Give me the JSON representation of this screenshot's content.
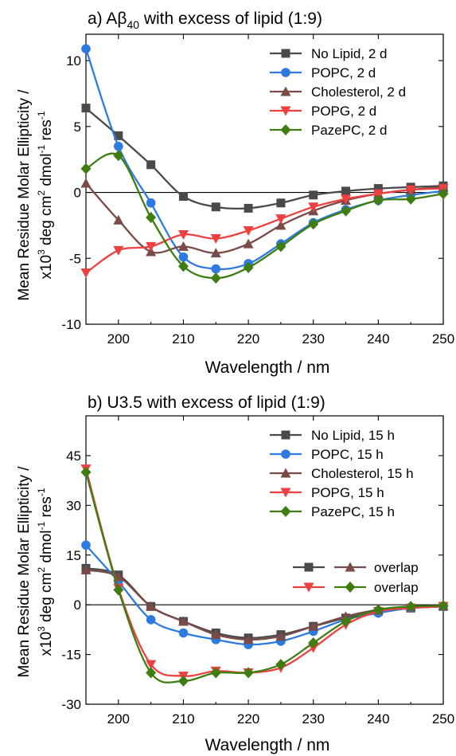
{
  "chart_data": [
    {
      "type": "line",
      "title_main": "a) Aβ",
      "title_sub": "40",
      "title_rest": " with excess of lipid (1:9)",
      "xlabel": "Wavelength / nm",
      "ylabel_line1": "Mean Residue Molar Ellipticity /",
      "ylabel_line2_a": "x10",
      "ylabel_line2_b": "3",
      "ylabel_line2_c": " deg cm",
      "ylabel_line2_d": "2",
      "ylabel_line2_e": " dmol",
      "ylabel_line2_f": "-1",
      "ylabel_line2_g": " res",
      "ylabel_line2_h": "-1",
      "xlim": [
        195,
        250
      ],
      "ylim": [
        -10,
        12
      ],
      "xticks": [
        200,
        210,
        220,
        230,
        240,
        250
      ],
      "yticks": [
        -10,
        -5,
        0,
        5,
        10
      ],
      "x": [
        195,
        200,
        205,
        210,
        215,
        220,
        225,
        230,
        235,
        240,
        245,
        250
      ],
      "legend_position": "top-right",
      "series": [
        {
          "name": "No Lipid, 2 d",
          "marker": "square",
          "color": "#4a4a4a",
          "values": [
            6.4,
            4.3,
            2.1,
            -0.3,
            -1.1,
            -1.2,
            -0.8,
            -0.2,
            0.1,
            0.3,
            0.4,
            0.5
          ]
        },
        {
          "name": "POPC, 2 d",
          "marker": "circle",
          "color": "#2d7ae0",
          "values": [
            10.9,
            3.5,
            -0.8,
            -4.9,
            -5.8,
            -5.4,
            -3.9,
            -2.3,
            -1.3,
            -0.6,
            -0.2,
            0.1
          ]
        },
        {
          "name": "Cholesterol, 2 d",
          "marker": "triangle-up",
          "color": "#7a4a46",
          "values": [
            0.7,
            -2.1,
            -4.5,
            -4.1,
            -4.6,
            -3.9,
            -2.5,
            -1.4,
            -0.6,
            -0.1,
            0.2,
            0.4
          ]
        },
        {
          "name": "POPG, 2 d",
          "marker": "triangle-down",
          "color": "#ee4040",
          "values": [
            -6.1,
            -4.4,
            -4.1,
            -3.2,
            -3.5,
            -2.9,
            -2.0,
            -1.1,
            -0.5,
            -0.1,
            0.2,
            0.3
          ]
        },
        {
          "name": "PazePC, 2 d",
          "marker": "diamond",
          "color": "#3f7d12",
          "values": [
            1.8,
            2.8,
            -1.9,
            -5.6,
            -6.5,
            -5.7,
            -4.1,
            -2.4,
            -1.4,
            -0.6,
            -0.5,
            -0.1
          ]
        }
      ]
    },
    {
      "type": "line",
      "title": "b) U3.5 with excess of lipid (1:9)",
      "xlabel": "Wavelength / nm",
      "ylabel_line1": "Mean Residue Molar Ellipticity /",
      "xlim": [
        195,
        250
      ],
      "ylim": [
        -30,
        57
      ],
      "xticks": [
        200,
        210,
        220,
        230,
        240,
        250
      ],
      "yticks": [
        -30,
        -15,
        0,
        15,
        30,
        45
      ],
      "x": [
        195,
        200,
        205,
        210,
        215,
        220,
        225,
        230,
        235,
        240,
        245,
        250
      ],
      "legend_position": "top-right",
      "overlap_label": "overlap",
      "series": [
        {
          "name": "No Lipid, 15 h",
          "marker": "square",
          "color": "#4a4a4a",
          "values": [
            11,
            9,
            -0.5,
            -5,
            -8.5,
            -10,
            -9,
            -6.5,
            -4,
            -2,
            -1,
            -0.5
          ]
        },
        {
          "name": "POPC, 15 h",
          "marker": "circle",
          "color": "#2d7ae0",
          "values": [
            18,
            7,
            -4.5,
            -8.5,
            -10.5,
            -12,
            -11,
            -8,
            -4.5,
            -2.5,
            -1,
            -0.5
          ]
        },
        {
          "name": "Cholesterol, 15 h",
          "marker": "triangle-up",
          "color": "#7a4a46",
          "values": [
            10.5,
            8.5,
            -0.5,
            -5,
            -9,
            -10.5,
            -9.5,
            -6.5,
            -3.5,
            -1.5,
            -0.5,
            -0.3
          ]
        },
        {
          "name": "POPG, 15 h",
          "marker": "triangle-down",
          "color": "#ee4040",
          "values": [
            41,
            5,
            -18,
            -21.5,
            -20,
            -20.5,
            -19,
            -13,
            -6,
            -2,
            -1,
            -0.5
          ]
        },
        {
          "name": "PazePC, 15 h",
          "marker": "diamond",
          "color": "#3f7d12",
          "values": [
            40,
            4.5,
            -20.5,
            -23,
            -20.5,
            -20.5,
            -18,
            -11.5,
            -5,
            -1.5,
            -0.5,
            -0.3
          ]
        }
      ]
    }
  ]
}
